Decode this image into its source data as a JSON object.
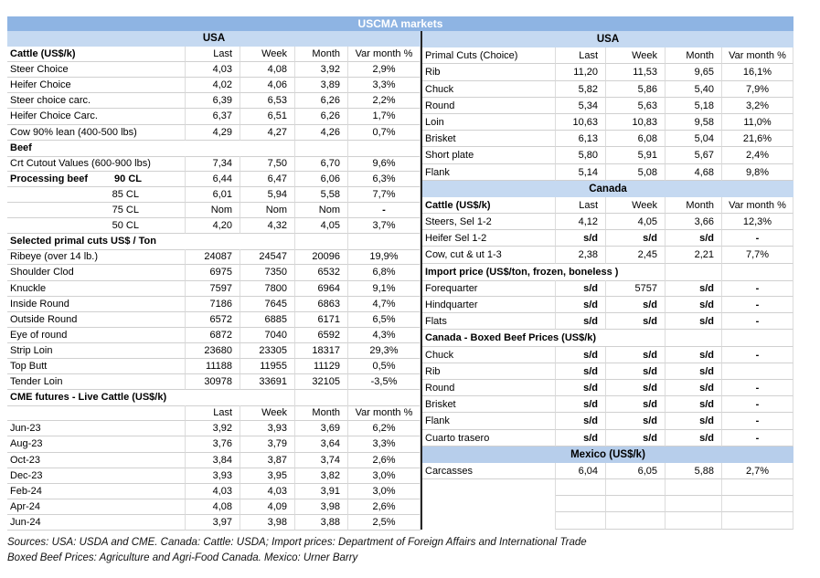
{
  "title": "USCMA markets",
  "colors": {
    "title_bar": "#8EB4E3",
    "band": "#C5D9F1",
    "band_mexico": "#B7CEEB",
    "divider": "#262626"
  },
  "columns": [
    "Last",
    "Week",
    "Month",
    "Var month %"
  ],
  "left": {
    "rows": [
      {
        "type": "band",
        "label": "USA"
      },
      {
        "type": "header",
        "label": "Cattle (US$/k)",
        "bold": true,
        "cols": [
          "Last",
          "Week",
          "Month",
          "Var month %"
        ]
      },
      {
        "type": "row",
        "label": "Steer Choice",
        "values": [
          "4,03",
          "4,08",
          "3,92",
          "2,9%"
        ]
      },
      {
        "type": "row",
        "label": "Heifer Choice",
        "values": [
          "4,02",
          "4,06",
          "3,89",
          "3,3%"
        ]
      },
      {
        "type": "row",
        "label": "Steer choice carc.",
        "values": [
          "6,39",
          "6,53",
          "6,26",
          "2,2%"
        ]
      },
      {
        "type": "row",
        "label": "Heifer Choice Carc.",
        "values": [
          "6,37",
          "6,51",
          "6,26",
          "1,7%"
        ]
      },
      {
        "type": "row",
        "label": "Cow 90% lean (400-500 lbs)",
        "values": [
          "4,29",
          "4,27",
          "4,26",
          "0,7%"
        ]
      },
      {
        "type": "section",
        "label": "Beef"
      },
      {
        "type": "row",
        "label": "Crt Cutout Values (600-900 lbs)",
        "values": [
          "7,34",
          "7,50",
          "6,70",
          "9,6%"
        ]
      },
      {
        "type": "row",
        "label": "Processing beef",
        "sub": "90 CL",
        "values": [
          "6,44",
          "6,47",
          "6,06",
          "6,3%"
        ]
      },
      {
        "type": "row",
        "label": "85 CL",
        "align": "right",
        "values": [
          "6,01",
          "5,94",
          "5,58",
          "7,7%"
        ]
      },
      {
        "type": "row",
        "label": "75 CL",
        "align": "right",
        "values": [
          "Nom",
          "Nom",
          "Nom",
          "-"
        ]
      },
      {
        "type": "row",
        "label": "50 CL",
        "align": "right",
        "values": [
          "4,20",
          "4,32",
          "4,05",
          "3,7%"
        ]
      },
      {
        "type": "section",
        "label": "Selected primal cuts US$ / Ton"
      },
      {
        "type": "row",
        "label": "Ribeye (over 14 lb.)",
        "values": [
          "24087",
          "24547",
          "20096",
          "19,9%"
        ]
      },
      {
        "type": "row",
        "label": "Shoulder Clod",
        "values": [
          "6975",
          "7350",
          "6532",
          "6,8%"
        ]
      },
      {
        "type": "row",
        "label": "Knuckle",
        "values": [
          "7597",
          "7800",
          "6964",
          "9,1%"
        ]
      },
      {
        "type": "row",
        "label": "Inside Round",
        "values": [
          "7186",
          "7645",
          "6863",
          "4,7%"
        ]
      },
      {
        "type": "row",
        "label": "Outside Round",
        "values": [
          "6572",
          "6885",
          "6171",
          "6,5%"
        ]
      },
      {
        "type": "row",
        "label": "Eye of round",
        "values": [
          "6872",
          "7040",
          "6592",
          "4,3%"
        ]
      },
      {
        "type": "row",
        "label": "Strip Loin",
        "values": [
          "23680",
          "23305",
          "18317",
          "29,3%"
        ]
      },
      {
        "type": "row",
        "label": "Top Butt",
        "values": [
          "11188",
          "11955",
          "11129",
          "0,5%"
        ]
      },
      {
        "type": "row",
        "label": "Tender Loin",
        "values": [
          "30978",
          "33691",
          "32105",
          "-3,5%"
        ]
      },
      {
        "type": "section",
        "label": "CME futures - Live Cattle (US$/k)"
      },
      {
        "type": "header",
        "label": "",
        "bold": false,
        "cols": [
          "Last",
          "Week",
          "Month",
          "Var month %"
        ]
      },
      {
        "type": "row",
        "label": "Jun-23",
        "values": [
          "3,92",
          "3,93",
          "3,69",
          "6,2%"
        ]
      },
      {
        "type": "row",
        "label": "Aug-23",
        "values": [
          "3,76",
          "3,79",
          "3,64",
          "3,3%"
        ]
      },
      {
        "type": "row",
        "label": "Oct-23",
        "values": [
          "3,84",
          "3,87",
          "3,74",
          "2,6%"
        ]
      },
      {
        "type": "row",
        "label": "Dec-23",
        "values": [
          "3,93",
          "3,95",
          "3,82",
          "3,0%"
        ]
      },
      {
        "type": "row",
        "label": "Feb-24",
        "values": [
          "4,03",
          "4,03",
          "3,91",
          "3,0%"
        ]
      },
      {
        "type": "row",
        "label": "Apr-24",
        "values": [
          "4,08",
          "4,09",
          "3,98",
          "2,6%"
        ]
      },
      {
        "type": "row",
        "label": "Jun-24",
        "values": [
          "3,97",
          "3,98",
          "3,88",
          "2,5%"
        ]
      }
    ]
  },
  "right": {
    "rows": [
      {
        "type": "band",
        "label": "USA"
      },
      {
        "type": "header",
        "label": "Primal Cuts (Choice)",
        "bold": false,
        "cols": [
          "Last",
          "Week",
          "Month",
          "Var month %"
        ]
      },
      {
        "type": "row",
        "label": "Rib",
        "values": [
          "11,20",
          "11,53",
          "9,65",
          "16,1%"
        ]
      },
      {
        "type": "row",
        "label": "Chuck",
        "values": [
          "5,82",
          "5,86",
          "5,40",
          "7,9%"
        ]
      },
      {
        "type": "row",
        "label": "Round",
        "values": [
          "5,34",
          "5,63",
          "5,18",
          "3,2%"
        ]
      },
      {
        "type": "row",
        "label": "Loin",
        "values": [
          "10,63",
          "10,83",
          "9,58",
          "11,0%"
        ]
      },
      {
        "type": "row",
        "label": "Brisket",
        "values": [
          "6,13",
          "6,08",
          "5,04",
          "21,6%"
        ]
      },
      {
        "type": "row",
        "label": "Short plate",
        "values": [
          "5,80",
          "5,91",
          "5,67",
          "2,4%"
        ]
      },
      {
        "type": "row",
        "label": "Flank",
        "values": [
          "5,14",
          "5,08",
          "4,68",
          "9,8%"
        ]
      },
      {
        "type": "band",
        "label": "Canada"
      },
      {
        "type": "header",
        "label": "Cattle (US$/k)",
        "bold": true,
        "cols": [
          "Last",
          "Week",
          "Month",
          "Var month %"
        ]
      },
      {
        "type": "row",
        "label": "Steers, Sel 1-2",
        "values": [
          "4,12",
          "4,05",
          "3,66",
          "12,3%"
        ]
      },
      {
        "type": "row",
        "label": "Heifer Sel 1-2",
        "values": [
          "s/d",
          "s/d",
          "s/d",
          "-"
        ]
      },
      {
        "type": "row",
        "label": "Cow, cut & ut 1-3",
        "values": [
          "2,38",
          "2,45",
          "2,21",
          "7,7%"
        ]
      },
      {
        "type": "section",
        "label": "Import price (US$/ton, frozen, boneless )"
      },
      {
        "type": "row",
        "label": "Forequarter",
        "values": [
          "s/d",
          "5757",
          "s/d",
          "-"
        ]
      },
      {
        "type": "row",
        "label": "Hindquarter",
        "values": [
          "s/d",
          "s/d",
          "s/d",
          "-"
        ]
      },
      {
        "type": "row",
        "label": "Flats",
        "values": [
          "s/d",
          "s/d",
          "s/d",
          "-"
        ]
      },
      {
        "type": "section",
        "label": "Canada - Boxed Beef Prices (US$/k)"
      },
      {
        "type": "row",
        "label": "Chuck",
        "values": [
          "s/d",
          "s/d",
          "s/d",
          "-"
        ]
      },
      {
        "type": "row",
        "label": "Rib",
        "values": [
          "s/d",
          "s/d",
          "s/d",
          ""
        ]
      },
      {
        "type": "row",
        "label": "Round",
        "values": [
          "s/d",
          "s/d",
          "s/d",
          "-"
        ]
      },
      {
        "type": "row",
        "label": "Brisket",
        "values": [
          "s/d",
          "s/d",
          "s/d",
          "-"
        ]
      },
      {
        "type": "row",
        "label": "Flank",
        "values": [
          "s/d",
          "s/d",
          "s/d",
          "-"
        ]
      },
      {
        "type": "row",
        "label": "Cuarto trasero",
        "values": [
          "s/d",
          "s/d",
          "s/d",
          "-"
        ]
      },
      {
        "type": "band",
        "label": "Mexico (US$/k)",
        "variant": "mexico"
      },
      {
        "type": "row",
        "label": "Carcasses",
        "values": [
          "6,04",
          "6,05",
          "5,88",
          "2,7%"
        ]
      },
      {
        "type": "empty"
      },
      {
        "type": "empty"
      },
      {
        "type": "empty"
      }
    ]
  },
  "footer": {
    "line1": "Sources: USA: USDA and CME. Canada: Cattle: USDA; Import prices: Department of Foreign Affairs and International Trade",
    "line2": "Boxed Beef Prices: Agriculture and Agri-Food Canada. Mexico: Urner Barry"
  }
}
